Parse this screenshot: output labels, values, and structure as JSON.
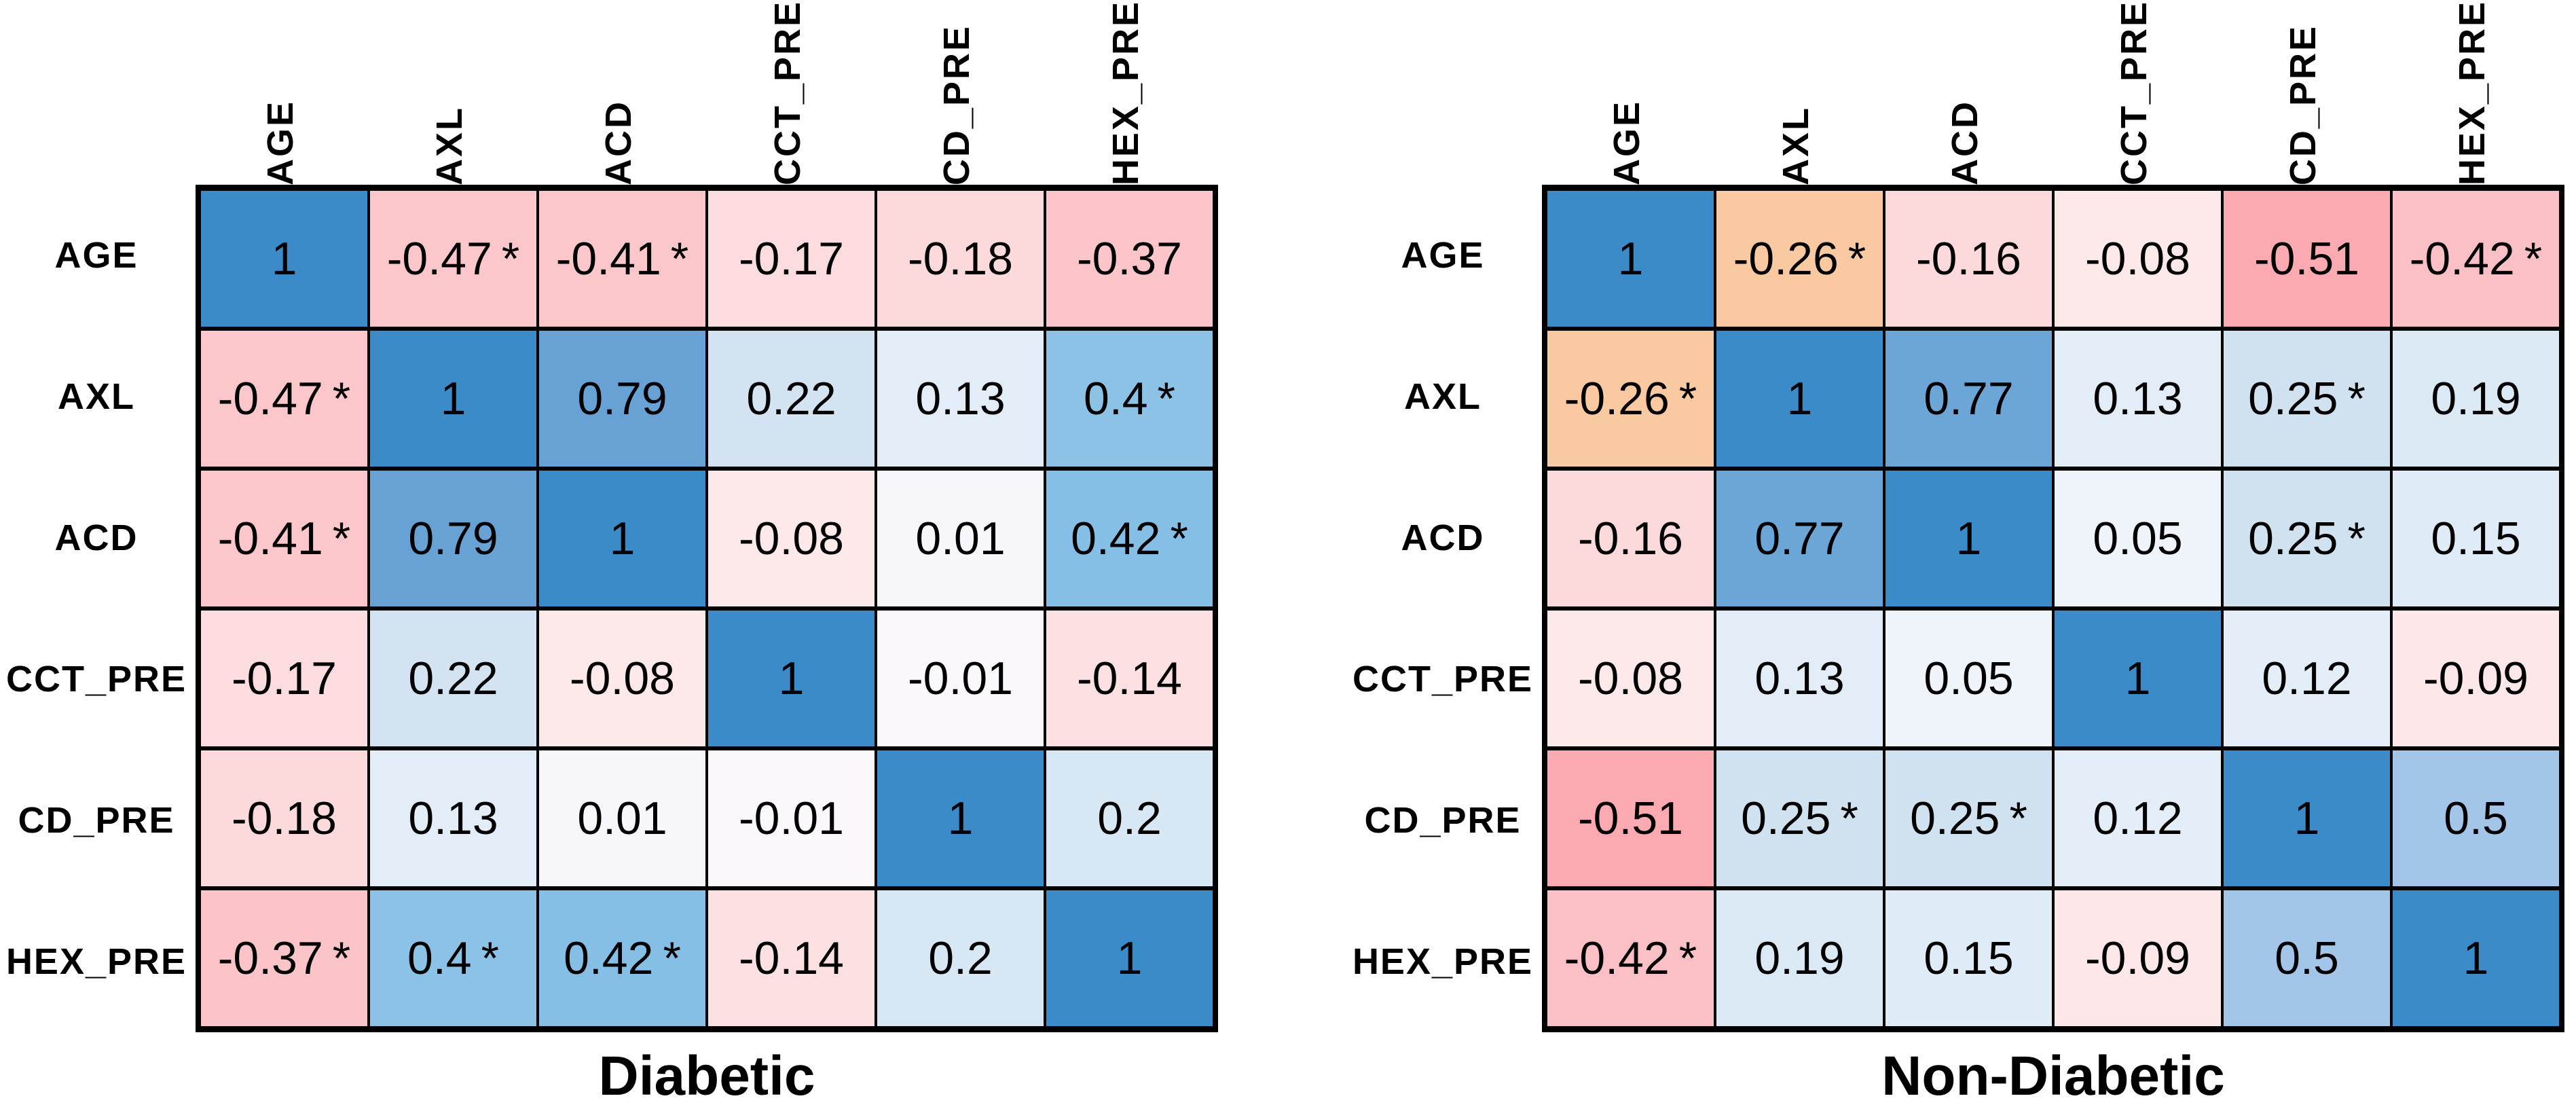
{
  "page": {
    "background": "#ffffff",
    "grid_line_color": "#000000"
  },
  "sig_symbol": "*",
  "chart_data": [
    {
      "type": "heatmap",
      "title": "Diabetic",
      "variables": [
        "AGE",
        "AXL",
        "ACD",
        "CCT_PRE",
        "CD_PRE",
        "HEX_PRE"
      ],
      "value_range": [
        -1,
        1
      ],
      "values": [
        [
          1,
          -0.47,
          -0.41,
          -0.17,
          -0.18,
          -0.37
        ],
        [
          -0.47,
          1,
          0.79,
          0.22,
          0.13,
          0.4
        ],
        [
          -0.41,
          0.79,
          1,
          -0.08,
          0.01,
          0.42
        ],
        [
          -0.17,
          0.22,
          -0.08,
          1,
          -0.01,
          -0.14
        ],
        [
          -0.18,
          0.13,
          0.01,
          -0.01,
          1,
          0.2
        ],
        [
          -0.37,
          0.4,
          0.42,
          -0.14,
          0.2,
          1
        ]
      ],
      "significant": [
        [
          false,
          true,
          true,
          false,
          false,
          false
        ],
        [
          true,
          false,
          false,
          false,
          false,
          true
        ],
        [
          true,
          false,
          false,
          false,
          false,
          true
        ],
        [
          false,
          false,
          false,
          false,
          false,
          false
        ],
        [
          false,
          false,
          false,
          false,
          false,
          false
        ],
        [
          true,
          true,
          true,
          false,
          false,
          false
        ]
      ],
      "colors": [
        [
          "#3A8BC8",
          "#FBC7CA",
          "#FBC7CA",
          "#FCDCDE",
          "#FCDADC",
          "#FBC5C9"
        ],
        [
          "#FBC7CA",
          "#3A8BC8",
          "#68A2D5",
          "#D4E3F1",
          "#E3EDF8",
          "#8BC2E6"
        ],
        [
          "#FBC7CA",
          "#68A2D5",
          "#3A8BC8",
          "#FDE8EA",
          "#F7F6FA",
          "#86BFE5"
        ],
        [
          "#FCDCDE",
          "#D4E3F1",
          "#FDE8EA",
          "#3A8BC8",
          "#FAF8FB",
          "#FCE0E2"
        ],
        [
          "#FCDADC",
          "#E3EDF8",
          "#F7F6FA",
          "#FAF8FB",
          "#3A8BC8",
          "#D8E7F4"
        ],
        [
          "#FBC4C8",
          "#8BC2E6",
          "#86BFE5",
          "#FCE0E2",
          "#D8E7F4",
          "#3A8BC8"
        ]
      ]
    },
    {
      "type": "heatmap",
      "title": "Non-Diabetic",
      "variables": [
        "AGE",
        "AXL",
        "ACD",
        "CCT_PRE",
        "CD_PRE",
        "HEX_PRE"
      ],
      "value_range": [
        -1,
        1
      ],
      "values": [
        [
          1,
          -0.26,
          -0.16,
          -0.08,
          -0.51,
          -0.42
        ],
        [
          -0.26,
          1,
          0.77,
          0.13,
          0.25,
          0.19
        ],
        [
          -0.16,
          0.77,
          1,
          0.05,
          0.25,
          0.15
        ],
        [
          -0.08,
          0.13,
          0.05,
          1,
          0.12,
          -0.09
        ],
        [
          -0.51,
          0.25,
          0.25,
          0.12,
          1,
          0.5
        ],
        [
          -0.42,
          0.19,
          0.15,
          -0.09,
          0.5,
          1
        ]
      ],
      "significant": [
        [
          false,
          true,
          false,
          false,
          false,
          true
        ],
        [
          true,
          false,
          false,
          false,
          true,
          false
        ],
        [
          false,
          false,
          false,
          false,
          true,
          false
        ],
        [
          false,
          false,
          false,
          false,
          false,
          false
        ],
        [
          false,
          true,
          true,
          false,
          false,
          false
        ],
        [
          true,
          false,
          false,
          false,
          false,
          false
        ]
      ],
      "colors": [
        [
          "#3A8BC8",
          "#F9C9A2",
          "#FCD9DB",
          "#FDE9EA",
          "#FAAAB0",
          "#FAC0C5"
        ],
        [
          "#F9C9A2",
          "#3A8BC8",
          "#6CA6D7",
          "#E3EDF8",
          "#D0E1F0",
          "#DBE9F5"
        ],
        [
          "#FCD9DB",
          "#6CA6D7",
          "#3A8BC8",
          "#EFF3FA",
          "#D0E1F0",
          "#DFEBF6"
        ],
        [
          "#FDE9EA",
          "#E3EDF8",
          "#EFF3FA",
          "#3A8BC8",
          "#E4EEF8",
          "#FDE7E9"
        ],
        [
          "#FAAAB0",
          "#D0E1F0",
          "#D0E1F0",
          "#E4EEF8",
          "#3A8BC8",
          "#A2C5E8"
        ],
        [
          "#FAC0C5",
          "#DBE9F5",
          "#DFEBF6",
          "#FDE7E9",
          "#A2C5E8",
          "#3A8BC8"
        ]
      ]
    }
  ]
}
